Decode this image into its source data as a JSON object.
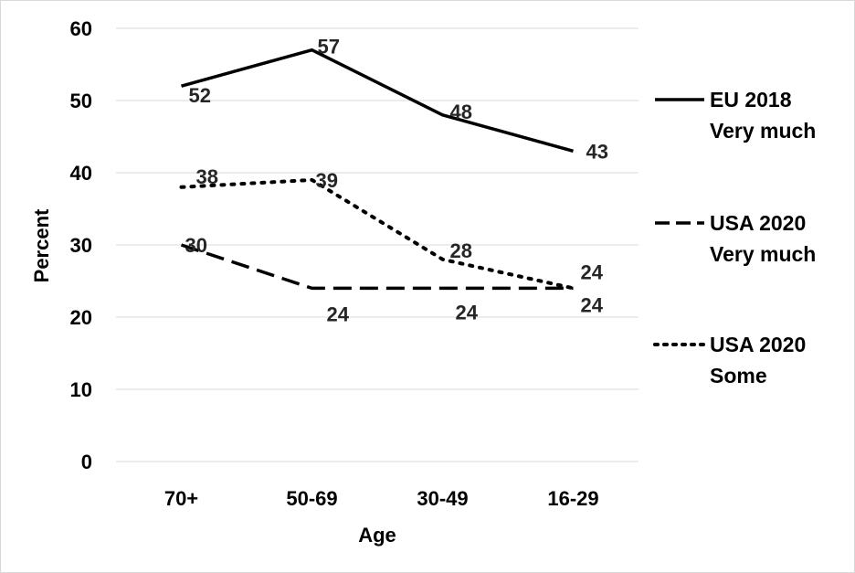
{
  "chart_data": {
    "type": "line",
    "categories": [
      "70+",
      "50-69",
      "30-49",
      "16-29"
    ],
    "xlabel": "Age",
    "ylabel": "Percent",
    "ylim": [
      0,
      60
    ],
    "yticks": [
      0,
      10,
      20,
      30,
      40,
      50,
      60
    ],
    "grid": "horizontal",
    "legend_position": "right",
    "series": [
      {
        "name": "EU 2018 Very much",
        "legend_lines": [
          "EU 2018",
          "Very much"
        ],
        "values": [
          52,
          57,
          48,
          43
        ],
        "style": "solid",
        "color": "#000000"
      },
      {
        "name": "USA 2020 Very much",
        "legend_lines": [
          "USA 2020",
          "Very much"
        ],
        "values": [
          30,
          24,
          24,
          24
        ],
        "style": "dashed",
        "color": "#000000"
      },
      {
        "name": "USA 2020 Some",
        "legend_lines": [
          "USA 2020",
          "Some"
        ],
        "values": [
          38,
          39,
          28,
          24
        ],
        "style": "dotted",
        "color": "#000000"
      }
    ]
  }
}
